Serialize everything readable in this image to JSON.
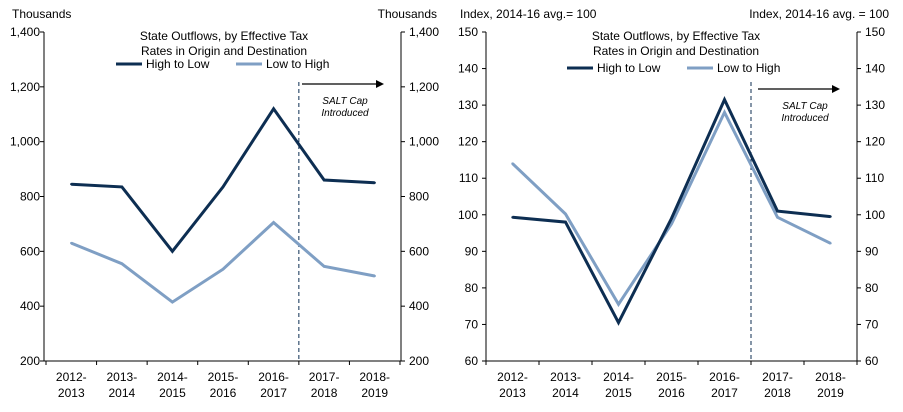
{
  "chart_data": [
    {
      "type": "line",
      "title_lines": [
        "State Outflows, by Effective Tax",
        "Rates in Origin and Destination"
      ],
      "unit_left": "Thousands",
      "unit_right": "Thousands",
      "categories": [
        [
          "2012-",
          "2013"
        ],
        [
          "2013-",
          "2014"
        ],
        [
          "2014-",
          "2015"
        ],
        [
          "2015-",
          "2016"
        ],
        [
          "2016-",
          "2017"
        ],
        [
          "2017-",
          "2018"
        ],
        [
          "2018-",
          "2019"
        ]
      ],
      "ylim": [
        200,
        1400
      ],
      "yticks": [
        200,
        400,
        600,
        800,
        1000,
        1200,
        1400
      ],
      "ytick_labels": [
        "200",
        "400",
        "600",
        "800",
        "1,000",
        "1,200",
        "1,400"
      ],
      "series": [
        {
          "name": "High to Low",
          "color": "#0d2e52",
          "values": [
            845,
            835,
            600,
            835,
            1120,
            860,
            850
          ]
        },
        {
          "name": "Low to High",
          "color": "#7f9fc4",
          "values": [
            630,
            555,
            415,
            535,
            705,
            545,
            510
          ]
        }
      ],
      "annotation": {
        "lines": [
          "SALT Cap",
          "Introduced"
        ],
        "between_index": 4.5
      }
    },
    {
      "type": "line",
      "title_lines": [
        "State Outflows, by Effective Tax",
        "Rates in Origin and Destination"
      ],
      "unit_left": "Index, 2014-16  avg.= 100",
      "unit_right": "Index, 2014-16  avg. = 100",
      "categories": [
        [
          "2012-",
          "2013"
        ],
        [
          "2013-",
          "2014"
        ],
        [
          "2014-",
          "2015"
        ],
        [
          "2015-",
          "2016"
        ],
        [
          "2016-",
          "2017"
        ],
        [
          "2017-",
          "2018"
        ],
        [
          "2018-",
          "2019"
        ]
      ],
      "ylim": [
        60,
        150
      ],
      "yticks": [
        60,
        70,
        80,
        90,
        100,
        110,
        120,
        130,
        140,
        150
      ],
      "ytick_labels": [
        "60",
        "70",
        "80",
        "90",
        "100",
        "110",
        "120",
        "130",
        "140",
        "150"
      ],
      "series": [
        {
          "name": "High to Low",
          "color": "#0d2e52",
          "values": [
            99.3,
            98,
            70.5,
            99,
            131.5,
            101,
            99.5
          ]
        },
        {
          "name": "Low to High",
          "color": "#7f9fc4",
          "values": [
            114,
            100.2,
            75.5,
            97.5,
            128,
            99.3,
            92.2
          ]
        }
      ],
      "annotation": {
        "lines": [
          "SALT Cap",
          "Introduced"
        ],
        "between_index": 4.5
      }
    }
  ]
}
